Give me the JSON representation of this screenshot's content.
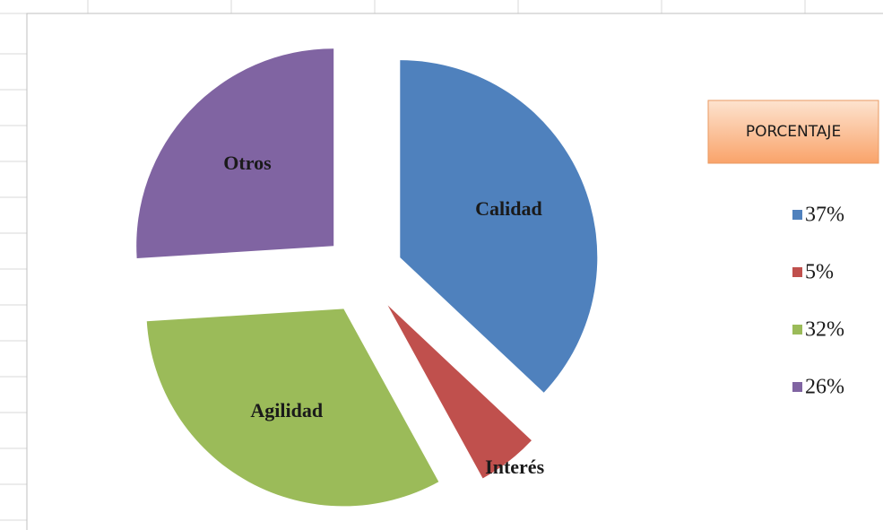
{
  "chart_data": {
    "type": "pie",
    "title": "PORCENTAJE",
    "categories": [
      "Calidad",
      "Interés",
      "Agilidad",
      "Otros"
    ],
    "values": [
      37,
      5,
      32,
      26
    ],
    "value_labels": [
      "37%",
      "5%",
      "32%",
      "26%"
    ],
    "colors": [
      "#4f81bd",
      "#c0504d",
      "#9bbb59",
      "#8064a2"
    ],
    "legend": "right"
  }
}
